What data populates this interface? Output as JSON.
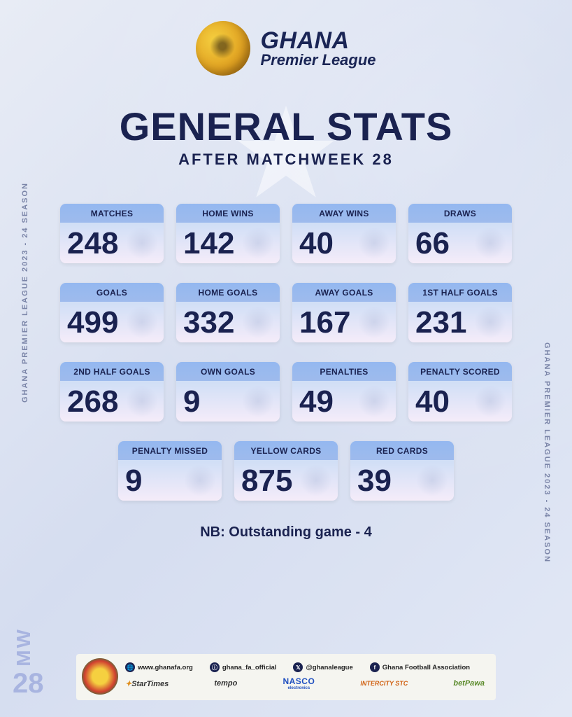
{
  "season_label": "GHANA PREMIER LEAGUE 2023 - 24 SEASON",
  "mw": {
    "label": "MW",
    "number": "28"
  },
  "logo": {
    "line1": "GHANA",
    "line2": "Premier League"
  },
  "title": "GENERAL STATS",
  "subtitle": "AFTER MATCHWEEK 28",
  "stats": {
    "rows": [
      [
        {
          "label": "MATCHES",
          "value": "248"
        },
        {
          "label": "HOME WINS",
          "value": "142"
        },
        {
          "label": "AWAY WINS",
          "value": "40"
        },
        {
          "label": "DRAWS",
          "value": "66"
        }
      ],
      [
        {
          "label": "GOALS",
          "value": "499"
        },
        {
          "label": "HOME GOALS",
          "value": "332"
        },
        {
          "label": "AWAY GOALS",
          "value": "167"
        },
        {
          "label": "1ST HALF GOALS",
          "value": "231"
        }
      ],
      [
        {
          "label": "2ND HALF GOALS",
          "value": "268"
        },
        {
          "label": "OWN GOALS",
          "value": "9"
        },
        {
          "label": "PENALTIES",
          "value": "49"
        },
        {
          "label": "PENALTY SCORED",
          "value": "40"
        }
      ],
      [
        {
          "label": "PENALTY MISSED",
          "value": "9"
        },
        {
          "label": "YELLOW CARDS",
          "value": "875"
        },
        {
          "label": "RED CARDS",
          "value": "39"
        }
      ]
    ]
  },
  "note": "NB: Outstanding game - 4",
  "footer": {
    "socials": [
      {
        "icon": "🌐",
        "text": "www.ghanafa.org"
      },
      {
        "icon": "ⓘ",
        "text": "ghana_fa_official"
      },
      {
        "icon": "𝕏",
        "text": "@ghanaleague"
      },
      {
        "icon": "f",
        "text": "Ghana Football Association"
      }
    ],
    "sponsors": {
      "startimes": "StarTimes",
      "tempo": "tempo",
      "nasco": "NASCO",
      "nasco_sub": "electronics",
      "stc": "INTERCITY STC",
      "betpawa": "betPawa"
    }
  },
  "colors": {
    "text_dark": "#1a2250",
    "side_text": "#7b85a8",
    "mw_accent": "#a8b4e0",
    "card_grad_top": "#8fb5f0",
    "card_grad_bottom": "#e8d5f2",
    "bg_grad_a": "#e8ecf5",
    "bg_grad_b": "#d5ddf0"
  }
}
